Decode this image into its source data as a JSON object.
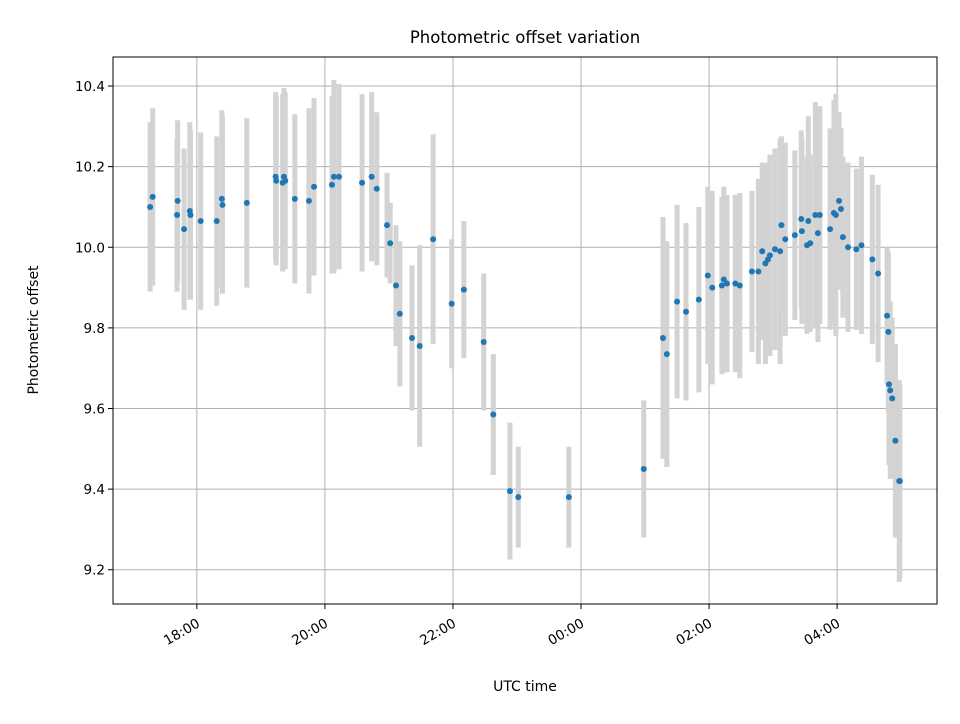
{
  "chart_data": {
    "type": "scatter",
    "title": "Photometric offset variation",
    "xlabel": "UTC time",
    "ylabel": "Photometric offset",
    "x_units": "hours since 18:00",
    "xlim": [
      -1.31,
      11.56
    ],
    "ylim": [
      9.115,
      10.472
    ],
    "grid": true,
    "x_ticks": [
      {
        "value": 0,
        "label": "18:00"
      },
      {
        "value": 2,
        "label": "20:00"
      },
      {
        "value": 4,
        "label": "22:00"
      },
      {
        "value": 6,
        "label": "00:00"
      },
      {
        "value": 8,
        "label": "02:00"
      },
      {
        "value": 10,
        "label": "04:00"
      }
    ],
    "y_ticks": [
      {
        "value": 9.2,
        "label": "9.2"
      },
      {
        "value": 9.4,
        "label": "9.4"
      },
      {
        "value": 9.6,
        "label": "9.6"
      },
      {
        "value": 9.8,
        "label": "9.8"
      },
      {
        "value": 10.0,
        "label": "10.0"
      },
      {
        "value": 10.2,
        "label": "10.2"
      },
      {
        "value": 10.4,
        "label": "10.4"
      }
    ],
    "colors": {
      "point": "#1f77b4",
      "errorbar": "#d3d3d3",
      "grid": "#b0b0b0"
    },
    "point_fields": [
      "x",
      "y",
      "yerr"
    ],
    "points": [
      [
        -0.73,
        10.1,
        0.21
      ],
      [
        -0.69,
        10.125,
        0.22
      ],
      [
        -0.31,
        10.08,
        0.19
      ],
      [
        -0.3,
        10.115,
        0.2
      ],
      [
        -0.2,
        10.045,
        0.2
      ],
      [
        -0.11,
        10.09,
        0.22
      ],
      [
        -0.1,
        10.08,
        0.21
      ],
      [
        0.06,
        10.065,
        0.22
      ],
      [
        0.31,
        10.065,
        0.21
      ],
      [
        0.39,
        10.12,
        0.22
      ],
      [
        0.4,
        10.105,
        0.22
      ],
      [
        0.78,
        10.11,
        0.21
      ],
      [
        1.23,
        10.175,
        0.21
      ],
      [
        1.24,
        10.165,
        0.21
      ],
      [
        1.34,
        10.16,
        0.22
      ],
      [
        1.36,
        10.175,
        0.22
      ],
      [
        1.38,
        10.165,
        0.22
      ],
      [
        1.53,
        10.12,
        0.21
      ],
      [
        1.75,
        10.115,
        0.23
      ],
      [
        1.83,
        10.15,
        0.22
      ],
      [
        2.11,
        10.155,
        0.22
      ],
      [
        2.14,
        10.175,
        0.24
      ],
      [
        2.22,
        10.175,
        0.23
      ],
      [
        2.58,
        10.16,
        0.22
      ],
      [
        2.73,
        10.175,
        0.21
      ],
      [
        2.81,
        10.145,
        0.19
      ],
      [
        2.97,
        10.055,
        0.13
      ],
      [
        3.02,
        10.01,
        0.1
      ],
      [
        3.11,
        9.905,
        0.15
      ],
      [
        3.17,
        9.835,
        0.18
      ],
      [
        3.36,
        9.775,
        0.18
      ],
      [
        3.48,
        9.755,
        0.25
      ],
      [
        3.69,
        10.02,
        0.26
      ],
      [
        3.98,
        9.86,
        0.16
      ],
      [
        4.17,
        9.895,
        0.17
      ],
      [
        4.48,
        9.765,
        0.17
      ],
      [
        4.63,
        9.585,
        0.15
      ],
      [
        4.89,
        9.395,
        0.17
      ],
      [
        5.02,
        9.38,
        0.125
      ],
      [
        5.81,
        9.38,
        0.125
      ],
      [
        6.98,
        9.45,
        0.17
      ],
      [
        7.28,
        9.775,
        0.3
      ],
      [
        7.34,
        9.735,
        0.28
      ],
      [
        7.5,
        9.865,
        0.24
      ],
      [
        7.64,
        9.84,
        0.22
      ],
      [
        7.84,
        9.87,
        0.23
      ],
      [
        7.98,
        9.93,
        0.22
      ],
      [
        8.05,
        9.9,
        0.24
      ],
      [
        8.2,
        9.905,
        0.22
      ],
      [
        8.23,
        9.92,
        0.23
      ],
      [
        8.28,
        9.91,
        0.22
      ],
      [
        8.41,
        9.91,
        0.22
      ],
      [
        8.48,
        9.905,
        0.23
      ],
      [
        8.67,
        9.94,
        0.2
      ],
      [
        8.77,
        9.94,
        0.23
      ],
      [
        8.83,
        9.99,
        0.22
      ],
      [
        8.88,
        9.96,
        0.25
      ],
      [
        8.92,
        9.97,
        0.24
      ],
      [
        8.95,
        9.98,
        0.25
      ],
      [
        9.03,
        9.995,
        0.25
      ],
      [
        9.11,
        9.99,
        0.28
      ],
      [
        9.13,
        10.055,
        0.22
      ],
      [
        9.19,
        10.02,
        0.24
      ],
      [
        9.34,
        10.03,
        0.21
      ],
      [
        9.44,
        10.07,
        0.22
      ],
      [
        9.45,
        10.04,
        0.23
      ],
      [
        9.53,
        10.005,
        0.22
      ],
      [
        9.55,
        10.065,
        0.26
      ],
      [
        9.58,
        10.01,
        0.22
      ],
      [
        9.66,
        10.08,
        0.28
      ],
      [
        9.7,
        10.035,
        0.27
      ],
      [
        9.73,
        10.08,
        0.27
      ],
      [
        9.89,
        10.045,
        0.25
      ],
      [
        9.95,
        10.085,
        0.28
      ],
      [
        9.98,
        10.08,
        0.3
      ],
      [
        10.03,
        10.115,
        0.22
      ],
      [
        10.06,
        10.095,
        0.2
      ],
      [
        10.09,
        10.025,
        0.2
      ],
      [
        10.17,
        10.0,
        0.21
      ],
      [
        10.3,
        9.995,
        0.2
      ],
      [
        10.38,
        10.005,
        0.22
      ],
      [
        10.55,
        9.97,
        0.21
      ],
      [
        10.64,
        9.935,
        0.22
      ],
      [
        10.78,
        9.83,
        0.17
      ],
      [
        10.8,
        9.79,
        0.2
      ],
      [
        10.81,
        9.66,
        0.2
      ],
      [
        10.83,
        9.645,
        0.22
      ],
      [
        10.86,
        9.625,
        0.2
      ],
      [
        10.91,
        9.52,
        0.24
      ],
      [
        10.97,
        9.42,
        0.25
      ],
      [
        10.98,
        9.42,
        0.24
      ]
    ]
  }
}
